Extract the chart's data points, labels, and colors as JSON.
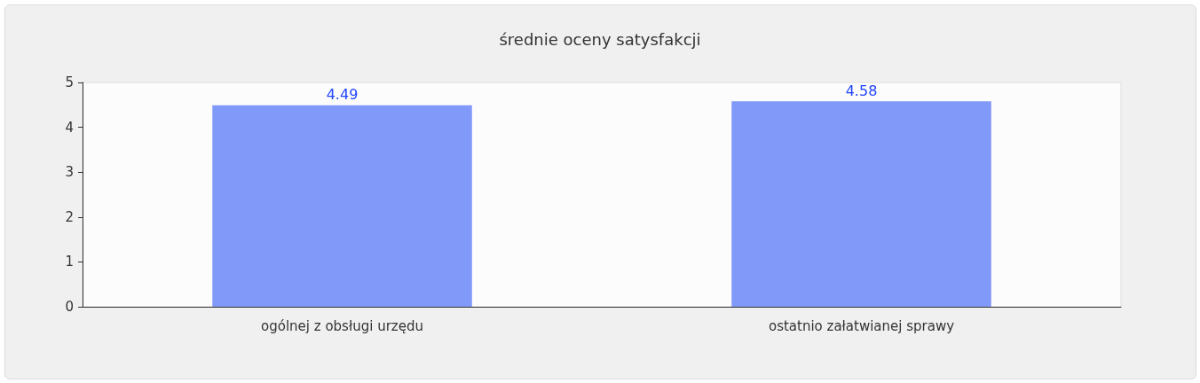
{
  "chart_data": {
    "type": "bar",
    "title": "średnie oceny satysfakcji",
    "categories": [
      "ogólnej z obsługi urzędu",
      "ostatnio załatwianej sprawy"
    ],
    "values": [
      4.49,
      4.58
    ],
    "color": "#8199f8",
    "ylim": [
      0,
      5
    ],
    "yticks": [
      0,
      1,
      2,
      3,
      4,
      5
    ],
    "grid": false,
    "data_labels": true
  }
}
